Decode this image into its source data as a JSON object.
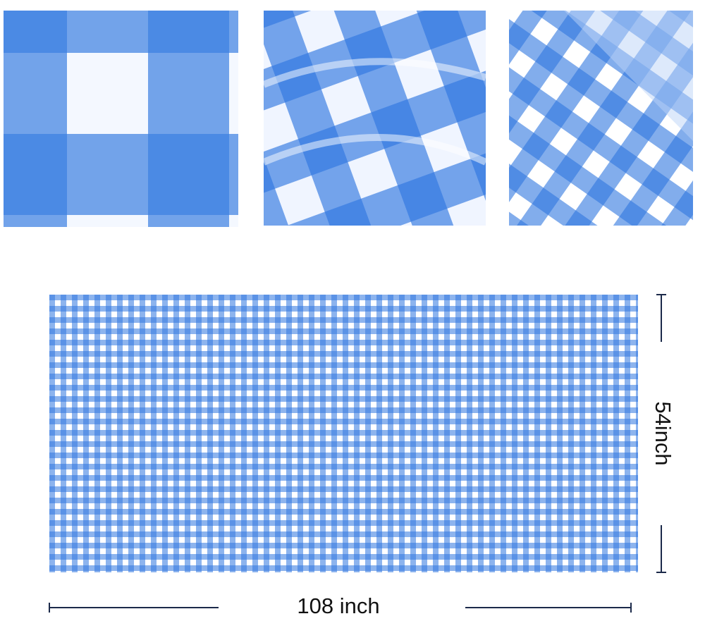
{
  "dimensions": {
    "width_label": "108 inch",
    "height_label": "54inch"
  }
}
